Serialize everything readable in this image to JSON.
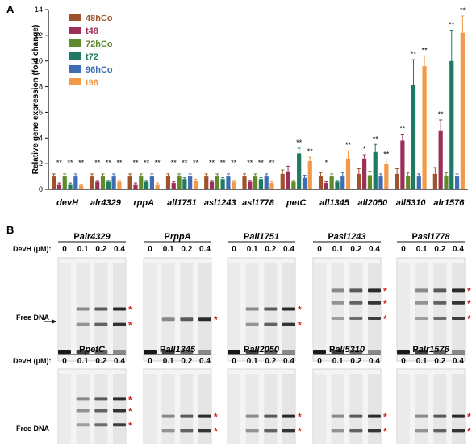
{
  "panel_a_label": "A",
  "panel_b_label": "B",
  "colors": {
    "48hCo": "#a0522d",
    "t48": "#9c2f5a",
    "72hCo": "#5f8a2a",
    "t72": "#1f7a63",
    "96hCo": "#3f6db3",
    "t96": "#f29a4a",
    "star_red": "#d42020"
  },
  "chart_data": {
    "type": "bar",
    "ylabel": "Relative gene expression (fold change)",
    "ylim": [
      0,
      14
    ],
    "yticks": [
      0,
      2,
      4,
      6,
      8,
      10,
      12,
      14
    ],
    "grid": false,
    "legend_position": "top-left",
    "categories": [
      "devH",
      "alr4329",
      "rppA",
      "all1751",
      "asl1243",
      "asl1778",
      "petC",
      "all1345",
      "all2050",
      "all5310",
      "alr1576"
    ],
    "series": [
      {
        "name": "48hCo",
        "values": [
          1.0,
          1.0,
          1.0,
          1.0,
          1.0,
          1.0,
          1.2,
          1.0,
          1.2,
          1.2,
          1.2
        ],
        "errors": [
          0.2,
          0.2,
          0.2,
          0.2,
          0.2,
          0.2,
          0.3,
          0.3,
          0.4,
          0.4,
          0.5
        ]
      },
      {
        "name": "t48",
        "values": [
          0.4,
          0.6,
          0.4,
          0.5,
          0.6,
          0.6,
          1.4,
          0.5,
          2.4,
          3.8,
          4.6
        ],
        "errors": [
          0.1,
          0.1,
          0.1,
          0.1,
          0.1,
          0.1,
          0.4,
          0.1,
          0.3,
          0.5,
          0.8
        ]
      },
      {
        "name": "72hCo",
        "values": [
          1.0,
          1.0,
          1.0,
          1.0,
          1.0,
          1.0,
          0.6,
          1.0,
          1.1,
          1.0,
          1.0
        ],
        "errors": [
          0.2,
          0.2,
          0.2,
          0.2,
          0.2,
          0.2,
          0.1,
          0.2,
          0.3,
          0.3,
          0.3
        ]
      },
      {
        "name": "t72",
        "values": [
          0.4,
          0.6,
          0.6,
          0.8,
          0.8,
          0.8,
          2.8,
          0.6,
          2.9,
          8.1,
          10.0
        ],
        "errors": [
          0.1,
          0.1,
          0.1,
          0.1,
          0.1,
          0.1,
          0.4,
          0.1,
          0.6,
          2.0,
          2.4
        ]
      },
      {
        "name": "96hCo",
        "values": [
          1.0,
          1.0,
          1.0,
          1.0,
          1.0,
          1.0,
          0.9,
          1.0,
          1.0,
          1.0,
          1.0
        ],
        "errors": [
          0.2,
          0.2,
          0.2,
          0.2,
          0.2,
          0.2,
          0.2,
          0.3,
          0.2,
          0.2,
          0.2
        ]
      },
      {
        "name": "t96",
        "values": [
          0.3,
          0.6,
          0.4,
          0.7,
          0.6,
          0.5,
          2.2,
          2.4,
          2.0,
          9.6,
          12.2
        ],
        "errors": [
          0.1,
          0.1,
          0.1,
          0.1,
          0.1,
          0.1,
          0.3,
          0.6,
          0.3,
          0.8,
          1.3
        ]
      }
    ],
    "annotations": [
      {
        "category": "devH",
        "marks": [
          "**",
          "**",
          "**"
        ],
        "series_index": [
          1,
          3,
          5
        ]
      },
      {
        "category": "alr4329",
        "marks": [
          "**",
          "**",
          "**"
        ],
        "series_index": [
          1,
          3,
          5
        ]
      },
      {
        "category": "rppA",
        "marks": [
          "**",
          "**",
          "**"
        ],
        "series_index": [
          1,
          3,
          5
        ]
      },
      {
        "category": "all1751",
        "marks": [
          "**",
          "**",
          "**"
        ],
        "series_index": [
          1,
          3,
          5
        ]
      },
      {
        "category": "asl1243",
        "marks": [
          "**",
          "**",
          "**"
        ],
        "series_index": [
          1,
          3,
          5
        ]
      },
      {
        "category": "asl1778",
        "marks": [
          "**",
          "**",
          "**"
        ],
        "series_index": [
          1,
          3,
          5
        ]
      },
      {
        "category": "petC",
        "marks": [
          "**",
          "**"
        ],
        "series_index": [
          3,
          5
        ]
      },
      {
        "category": "all1345",
        "marks": [
          "*",
          "**"
        ],
        "series_index": [
          1,
          5
        ]
      },
      {
        "category": "all2050",
        "marks": [
          "*",
          "**",
          "**"
        ],
        "series_index": [
          1,
          3,
          5
        ]
      },
      {
        "category": "all5310",
        "marks": [
          "**",
          "**",
          "**"
        ],
        "series_index": [
          1,
          3,
          5
        ]
      },
      {
        "category": "alr1576",
        "marks": [
          "**",
          "**",
          "**"
        ],
        "series_index": [
          1,
          3,
          5
        ]
      }
    ]
  },
  "gels": [
    {
      "prefix": "P",
      "gene": "alr4329",
      "lanes": [
        "0",
        "0.1",
        "0.2",
        "0.4"
      ],
      "shifted_bands": 2,
      "stars": 2
    },
    {
      "prefix": "P",
      "gene": "rppA",
      "lanes": [
        "0",
        "0.1",
        "0.2",
        "0.4"
      ],
      "shifted_bands": 1,
      "stars": 1
    },
    {
      "prefix": "P",
      "gene": "all1751",
      "lanes": [
        "0",
        "0.1",
        "0.2",
        "0.4"
      ],
      "shifted_bands": 2,
      "stars": 2
    },
    {
      "prefix": "P",
      "gene": "asl1243",
      "lanes": [
        "0",
        "0.1",
        "0.2",
        "0.4"
      ],
      "shifted_bands": 3,
      "stars": 3
    },
    {
      "prefix": "P",
      "gene": "asl1778",
      "lanes": [
        "0",
        "0.1",
        "0.2",
        "0.4"
      ],
      "shifted_bands": 3,
      "stars": 3
    },
    {
      "prefix": "P",
      "gene": "petC",
      "lanes": [
        "0",
        "0.1",
        "0.2",
        "0.4"
      ],
      "shifted_bands": 3,
      "stars": 3
    },
    {
      "prefix": "P",
      "gene": "all1345",
      "lanes": [
        "0",
        "0.1",
        "0.2",
        "0.4"
      ],
      "shifted_bands": 2,
      "stars": 2
    },
    {
      "prefix": "P",
      "gene": "all2050",
      "lanes": [
        "0",
        "0.1",
        "0.2",
        "0.4"
      ],
      "shifted_bands": 2,
      "stars": 2
    },
    {
      "prefix": "P",
      "gene": "all5310",
      "lanes": [
        "0",
        "0.1",
        "0.2",
        "0.4"
      ],
      "shifted_bands": 2,
      "stars": 2
    },
    {
      "prefix": "P",
      "gene": "alr1576",
      "lanes": [
        "0",
        "0.1",
        "0.2",
        "0.4"
      ],
      "shifted_bands": 2,
      "stars": 2
    }
  ],
  "devh_label": "DevH (μM):",
  "free_dna_label": "Free DNA",
  "star_mark": "*"
}
